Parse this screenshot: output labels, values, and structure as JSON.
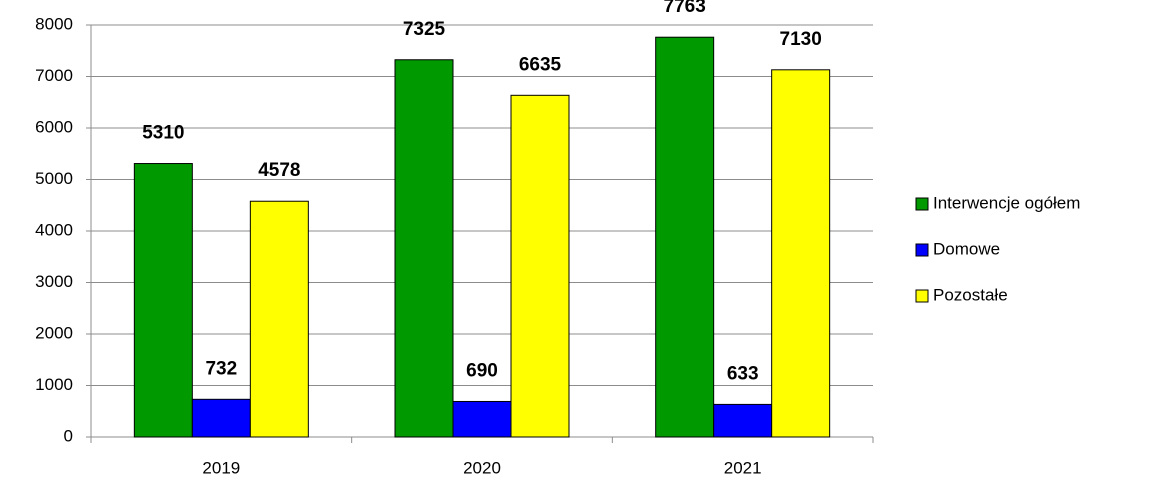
{
  "chart_data": {
    "type": "bar",
    "categories": [
      "2019",
      "2020",
      "2021"
    ],
    "series": [
      {
        "name": "Interwencje ogółem",
        "color": "#009900",
        "values": [
          5310,
          7325,
          7763
        ]
      },
      {
        "name": "Domowe",
        "color": "#0000ff",
        "values": [
          732,
          690,
          633
        ]
      },
      {
        "name": "Pozostałe",
        "color": "#ffff00",
        "values": [
          4578,
          6635,
          7130
        ]
      }
    ],
    "ylim": [
      0,
      8000
    ],
    "yticks": [
      0,
      1000,
      2000,
      3000,
      4000,
      5000,
      6000,
      7000,
      8000
    ],
    "grid": true,
    "legend": "right"
  }
}
